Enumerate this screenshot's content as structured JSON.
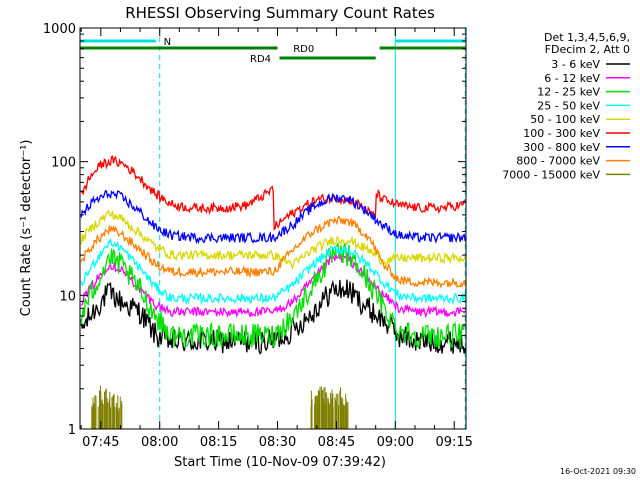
{
  "chart_data": {
    "type": "line",
    "title": "RHESSI Observing Summary Count Rates",
    "xlabel": "Start Time (10-Nov-09 07:39:42)",
    "ylabel": "Count Rate (s⁻¹ detector⁻¹)",
    "yscale": "log",
    "ylim": [
      1,
      1000
    ],
    "xlim_minutes": [
      459.7,
      558.0
    ],
    "x_ticks": [
      {
        "t": 465,
        "label": "07:45"
      },
      {
        "t": 480,
        "label": "08:00"
      },
      {
        "t": 495,
        "label": "08:15"
      },
      {
        "t": 510,
        "label": "08:30"
      },
      {
        "t": 525,
        "label": "08:45"
      },
      {
        "t": 540,
        "label": "09:00"
      },
      {
        "t": 555,
        "label": "09:15"
      }
    ],
    "y_ticks": [
      {
        "v": 1,
        "label": "1"
      },
      {
        "v": 10,
        "label": "10"
      },
      {
        "v": 100,
        "label": "100"
      },
      {
        "v": 1000,
        "label": "1000"
      }
    ],
    "legend": {
      "header_line1": "Det 1,3,4,5,6,9,",
      "header_line2": "FDecim 2, Att 0",
      "position": "right"
    },
    "flags": [
      {
        "label": "N",
        "color": "#00e0e0",
        "segments": [
          [
            459.7,
            479.0
          ],
          [
            540.0,
            557.8
          ]
        ]
      },
      {
        "label": "RD0",
        "color": "#008000",
        "segments": [
          [
            459.7,
            510.0
          ],
          [
            536.0,
            557.8
          ]
        ]
      },
      {
        "label": "RD4",
        "color": "#008000",
        "segments": [
          [
            510.5,
            535.0
          ]
        ]
      }
    ],
    "vlines": [
      {
        "t": 459.7,
        "style": "solid",
        "color": "#00e0e0"
      },
      {
        "t": 480.0,
        "style": "dashed",
        "color": "#00e0e0"
      },
      {
        "t": 540.0,
        "style": "solid",
        "color": "#00e0e0"
      },
      {
        "t": 557.8,
        "style": "dashed",
        "color": "#00e0e0"
      }
    ],
    "series": [
      {
        "name": "3 - 6 keV",
        "color": "#000000",
        "x": [
          460,
          463,
          467,
          470,
          475,
          479,
          483,
          490,
          497,
          503,
          509,
          514,
          519,
          524,
          528,
          533,
          537,
          541,
          546,
          552,
          557.8
        ],
        "y": [
          5.5,
          7.5,
          10.5,
          9,
          7.5,
          5,
          4.5,
          4.5,
          4.5,
          4.5,
          4.5,
          5.5,
          7.5,
          11,
          11,
          8,
          6.5,
          5,
          4.5,
          4.5,
          4.5
        ]
      },
      {
        "name": "6 - 12 keV",
        "color": "#ff00ff",
        "x": [
          460,
          463,
          467,
          470,
          475,
          479,
          483,
          490,
          497,
          503,
          509,
          514,
          519,
          524,
          528,
          533,
          537,
          541,
          546,
          552,
          557.8
        ],
        "y": [
          9,
          12,
          17,
          16,
          11,
          8.5,
          7.5,
          7.5,
          7.5,
          7.5,
          7.5,
          9,
          13,
          19,
          19,
          13,
          10,
          8,
          7.5,
          7.5,
          7.5
        ]
      },
      {
        "name": "12 - 25 keV",
        "color": "#00e000",
        "x": [
          460,
          463,
          467,
          470,
          475,
          479,
          483,
          490,
          497,
          503,
          509,
          514,
          519,
          524,
          528,
          533,
          537,
          541,
          546,
          552,
          557.8
        ],
        "y": [
          7,
          11,
          19,
          17,
          11,
          7,
          5,
          5,
          5,
          5,
          5,
          7,
          12,
          20,
          20,
          13,
          8,
          5.5,
          5,
          5,
          5
        ]
      },
      {
        "name": "25 - 50 keV",
        "color": "#00ffff",
        "x": [
          460,
          463,
          467,
          470,
          475,
          479,
          483,
          490,
          497,
          503,
          509,
          514,
          519,
          524,
          528,
          533,
          537,
          541,
          546,
          552,
          557.8
        ],
        "y": [
          12,
          17,
          25,
          23,
          16,
          11.5,
          9.5,
          9.5,
          9.5,
          9.5,
          9.5,
          12,
          17,
          22,
          22,
          17,
          12.5,
          10,
          9.5,
          9.5,
          9.5
        ]
      },
      {
        "name": "50 - 100 keV",
        "color": "#d8d800",
        "x": [
          460,
          463,
          467,
          470,
          475,
          479,
          483,
          490,
          497,
          503,
          509,
          514,
          519,
          524,
          528,
          533,
          537,
          541,
          546,
          552,
          557.8
        ],
        "y": [
          26,
          33,
          41,
          38,
          29,
          23,
          20,
          20,
          20,
          20,
          20,
          17,
          22,
          26,
          26,
          22,
          18,
          19,
          19,
          19,
          19
        ]
      },
      {
        "name": "100 - 300 keV",
        "color": "#ff0000",
        "x": [
          460,
          462,
          465,
          468,
          471,
          475,
          479,
          483,
          488,
          495,
          502,
          507,
          509,
          509.1,
          512,
          516,
          520,
          525,
          530,
          535,
          535.1,
          537,
          541,
          546,
          552,
          557.8
        ],
        "y": [
          55,
          75,
          95,
          102,
          95,
          75,
          57,
          48,
          45,
          45,
          47,
          57,
          63,
          32,
          38,
          45,
          52,
          54,
          50,
          38,
          58,
          52,
          47,
          45,
          45,
          48
        ]
      },
      {
        "name": "300 - 800 keV",
        "color": "#0000ff",
        "x": [
          460,
          463,
          467,
          470,
          475,
          479,
          483,
          490,
          497,
          503,
          509,
          514,
          519,
          524,
          528,
          533,
          537,
          541,
          546,
          552,
          557.8
        ],
        "y": [
          40,
          50,
          58,
          55,
          42,
          32,
          28,
          27,
          27,
          27,
          27,
          34,
          46,
          54,
          53,
          42,
          33,
          28,
          27,
          27,
          27
        ]
      },
      {
        "name": "800 - 7000 keV",
        "color": "#ff8000",
        "x": [
          460,
          463,
          467,
          470,
          475,
          479,
          483,
          490,
          497,
          503,
          509,
          514,
          519,
          524,
          528,
          533,
          537,
          541,
          546,
          552,
          557.8
        ],
        "y": [
          18,
          24,
          31,
          29,
          22,
          17,
          15,
          15,
          15,
          15,
          15,
          22,
          30,
          36,
          36,
          28,
          17,
          13,
          12.5,
          12.5,
          12.5
        ]
      },
      {
        "name": "7000 - 15000 keV",
        "color": "#808000",
        "x": [
          463.5,
          465.5,
          467.5,
          469.5,
          519.5,
          521.5,
          523.5,
          525.5,
          527.5
        ],
        "y": [
          1.6,
          1.8,
          1.7,
          1.6,
          1.7,
          1.8,
          1.7,
          1.8,
          1.6
        ]
      }
    ]
  },
  "footer": {
    "timestamp": "16-Oct-2021 09:30"
  }
}
